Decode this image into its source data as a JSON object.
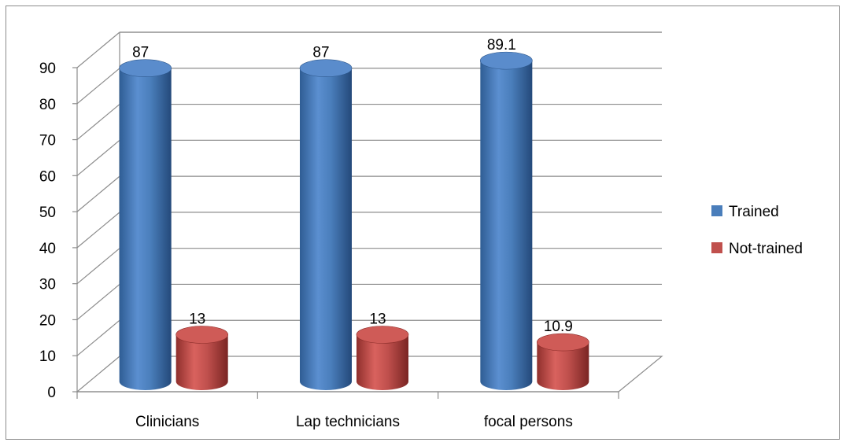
{
  "chart_data": {
    "type": "bar",
    "style": "3d-cylinder",
    "categories": [
      "Clinicians",
      "Lap technicians",
      "focal persons"
    ],
    "series": [
      {
        "name": "Trained",
        "values": [
          87,
          87,
          89.1
        ],
        "labels": [
          "87",
          "87",
          "89.1"
        ],
        "color": "#4a7ebb"
      },
      {
        "name": "Not-trained",
        "values": [
          13,
          13,
          10.9
        ],
        "labels": [
          "13",
          "13",
          "10.9"
        ],
        "color": "#c0504d"
      }
    ],
    "ylim": [
      0,
      90
    ],
    "yticks": [
      "0",
      "10",
      "20",
      "30",
      "40",
      "50",
      "60",
      "70",
      "80",
      "90"
    ],
    "grid": true,
    "legend": "right"
  }
}
